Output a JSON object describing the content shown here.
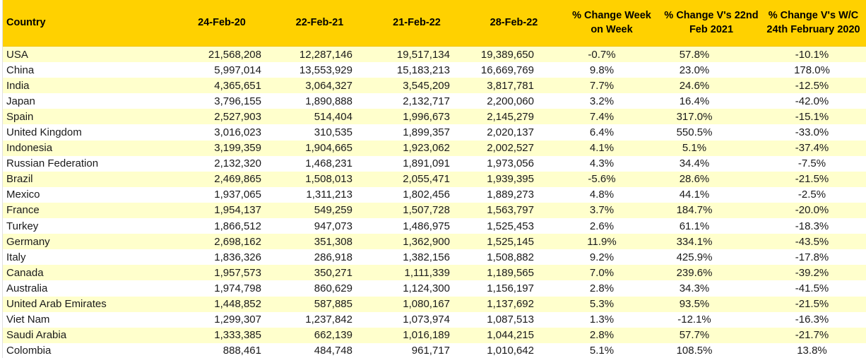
{
  "table": {
    "columns": [
      {
        "id": "country",
        "label": "Country"
      },
      {
        "id": "date-24-feb-20",
        "label": "24-Feb-20"
      },
      {
        "id": "date-22-feb-21",
        "label": "22-Feb-21"
      },
      {
        "id": "date-21-feb-22",
        "label": "21-Feb-22"
      },
      {
        "id": "date-28-feb-22",
        "label": "28-Feb-22"
      },
      {
        "id": "pct-week-on-week",
        "label": "% Change Week on Week"
      },
      {
        "id": "pct-vs-22-feb-2021",
        "label": "% Change V's 22nd Feb 2021"
      },
      {
        "id": "pct-vs-wc-24-feb-2020",
        "label": "% Change V's W/C 24th February 2020"
      }
    ],
    "rows": [
      {
        "country": "USA",
        "values": [
          "21,568,208",
          "12,287,146",
          "19,517,134",
          "19,389,650",
          "-0.7%",
          "57.8%",
          "-10.1%"
        ]
      },
      {
        "country": "China",
        "values": [
          "5,997,014",
          "13,553,929",
          "15,183,213",
          "16,669,769",
          "9.8%",
          "23.0%",
          "178.0%"
        ]
      },
      {
        "country": "India",
        "values": [
          "4,365,651",
          "3,064,327",
          "3,545,209",
          "3,817,781",
          "7.7%",
          "24.6%",
          "-12.5%"
        ]
      },
      {
        "country": "Japan",
        "values": [
          "3,796,155",
          "1,890,888",
          "2,132,717",
          "2,200,060",
          "3.2%",
          "16.4%",
          "-42.0%"
        ]
      },
      {
        "country": "Spain",
        "values": [
          "2,527,903",
          "514,404",
          "1,996,673",
          "2,145,279",
          "7.4%",
          "317.0%",
          "-15.1%"
        ]
      },
      {
        "country": "United Kingdom",
        "values": [
          "3,016,023",
          "310,535",
          "1,899,357",
          "2,020,137",
          "6.4%",
          "550.5%",
          "-33.0%"
        ]
      },
      {
        "country": "Indonesia",
        "values": [
          "3,199,359",
          "1,904,665",
          "1,923,062",
          "2,002,527",
          "4.1%",
          "5.1%",
          "-37.4%"
        ]
      },
      {
        "country": "Russian Federation",
        "values": [
          "2,132,320",
          "1,468,231",
          "1,891,091",
          "1,973,056",
          "4.3%",
          "34.4%",
          "-7.5%"
        ]
      },
      {
        "country": "Brazil",
        "values": [
          "2,469,865",
          "1,508,013",
          "2,055,471",
          "1,939,395",
          "-5.6%",
          "28.6%",
          "-21.5%"
        ]
      },
      {
        "country": "Mexico",
        "values": [
          "1,937,065",
          "1,311,213",
          "1,802,456",
          "1,889,273",
          "4.8%",
          "44.1%",
          "-2.5%"
        ]
      },
      {
        "country": "France",
        "values": [
          "1,954,137",
          "549,259",
          "1,507,728",
          "1,563,797",
          "3.7%",
          "184.7%",
          "-20.0%"
        ]
      },
      {
        "country": "Turkey",
        "values": [
          "1,866,512",
          "947,073",
          "1,486,975",
          "1,525,453",
          "2.6%",
          "61.1%",
          "-18.3%"
        ]
      },
      {
        "country": "Germany",
        "values": [
          "2,698,162",
          "351,308",
          "1,362,900",
          "1,525,145",
          "11.9%",
          "334.1%",
          "-43.5%"
        ]
      },
      {
        "country": "Italy",
        "values": [
          "1,836,326",
          "286,918",
          "1,382,156",
          "1,508,882",
          "9.2%",
          "425.9%",
          "-17.8%"
        ]
      },
      {
        "country": "Canada",
        "values": [
          "1,957,573",
          "350,271",
          "1,111,339",
          "1,189,565",
          "7.0%",
          "239.6%",
          "-39.2%"
        ]
      },
      {
        "country": "Australia",
        "values": [
          "1,974,798",
          "860,629",
          "1,124,300",
          "1,156,197",
          "2.8%",
          "34.3%",
          "-41.5%"
        ]
      },
      {
        "country": "United Arab Emirates",
        "values": [
          "1,448,852",
          "587,885",
          "1,080,167",
          "1,137,692",
          "5.3%",
          "93.5%",
          "-21.5%"
        ]
      },
      {
        "country": "Viet Nam",
        "values": [
          "1,299,307",
          "1,237,842",
          "1,073,974",
          "1,087,513",
          "1.3%",
          "-12.1%",
          "-16.3%"
        ]
      },
      {
        "country": "Saudi Arabia",
        "values": [
          "1,333,385",
          "662,139",
          "1,016,189",
          "1,044,215",
          "2.8%",
          "57.7%",
          "-21.7%"
        ]
      },
      {
        "country": "Colombia",
        "values": [
          "888,461",
          "484,748",
          "961,717",
          "1,010,642",
          "5.1%",
          "108.5%",
          "13.8%"
        ]
      }
    ]
  },
  "colors": {
    "header_bg": "#FFD100",
    "row_alt_bg": "#FFFFCC",
    "row_bg": "#FFFFFF",
    "text": "#1A1A1A"
  }
}
